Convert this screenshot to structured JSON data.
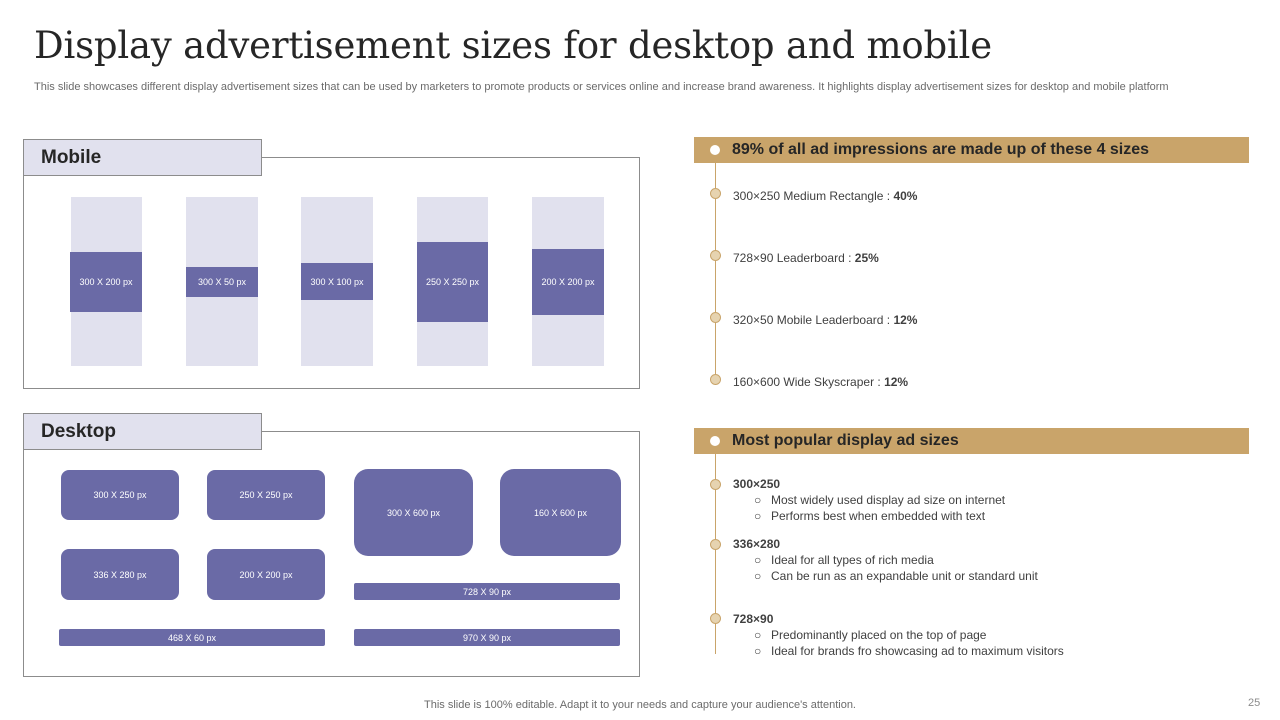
{
  "title": "Display advertisement sizes for desktop and mobile",
  "subtitle": "This slide showcases different display advertisement sizes that can be used by marketers to promote products or services online and increase brand awareness. It highlights display advertisement sizes for desktop and mobile platform",
  "mobile": {
    "label": "Mobile",
    "ads": [
      "300 X 200 px",
      "300 X 50 px",
      "300 X 100 px",
      "250 X 250 px",
      "200 X 200 px"
    ]
  },
  "desktop": {
    "label": "Desktop",
    "ads": [
      "300 X 250 px",
      "250 X 250 px",
      "300 X 600 px",
      "160 X 600 px",
      "336 X 280 px",
      "200 X 200 px",
      "728 X 90 px",
      "468 X 60 px",
      "970 X 90 px"
    ]
  },
  "impressions": {
    "heading": "89% of all ad impressions are made up of these 4 sizes",
    "items": [
      {
        "label": "300×250 Medium Rectangle  : ",
        "value": "40%"
      },
      {
        "label": "728×90 Leaderboard   : ",
        "value": "25%"
      },
      {
        "label": "320×50 Mobile Leaderboard  : ",
        "value": "12%"
      },
      {
        "label": "160×600 Wide Skyscraper : ",
        "value": "12%"
      }
    ]
  },
  "popular": {
    "heading": "Most popular display ad sizes",
    "groups": [
      {
        "size": "300×250",
        "bullets": [
          "Most widely used display ad size on internet",
          "Performs  best when  embedded  with text"
        ]
      },
      {
        "size": "336×280",
        "bullets": [
          "Ideal for all types of rich media",
          "Can be run as an expandable unit or standard unit"
        ]
      },
      {
        "size": "728×90",
        "bullets": [
          "Predominantly placed on the top of page",
          "Ideal for brands fro showcasing ad to maximum visitors"
        ]
      }
    ]
  },
  "bullet_glyph": "○",
  "footer": "This slide is 100% editable. Adapt it to your needs and capture your audience's attention.",
  "page_number": "25",
  "colors": {
    "accent": "#c9a46a",
    "ad_fill": "#6a6aa6",
    "ad_bg": "#e1e1ee"
  }
}
